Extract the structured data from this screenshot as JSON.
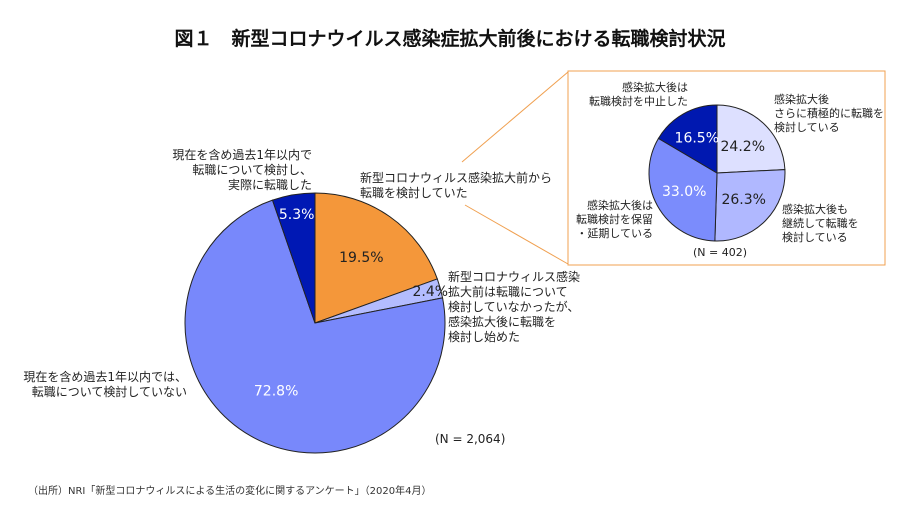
{
  "chart_data": [
    {
      "type": "pie",
      "title": "図１　新型コロナウイルス感染症拡大前後における転職検討状況",
      "n_label": "(N = 2,064)",
      "slices": [
        {
          "label": "新型コロナウィルス感染拡大前から転職を検討していた",
          "value": 19.5,
          "value_label": "19.5%",
          "color": "#f4973a"
        },
        {
          "label": "新型コロナウィルス感染拡大前は転職について検討していなかったが、感染拡大後に転職を検討し始めた",
          "value": 2.4,
          "value_label": "2.4%",
          "color": "#b3bcff"
        },
        {
          "label": "現在を含め過去1年以内では、転職について検討していない",
          "value": 72.8,
          "value_label": "72.8%",
          "color": "#7888fb"
        },
        {
          "label": "現在を含め過去1年以内で転職について検討し、実際に転職した",
          "value": 5.3,
          "value_label": "5.3%",
          "color": "#0018b4"
        }
      ]
    },
    {
      "type": "pie",
      "title": "",
      "n_label": "(N = 402)",
      "slices": [
        {
          "label": "感染拡大後さらに積極的に転職を検討している",
          "value": 24.2,
          "value_label": "24.2%",
          "color": "#dde0ff"
        },
        {
          "label": "感染拡大後も継続して転職を検討している",
          "value": 26.3,
          "value_label": "26.3%",
          "color": "#b0b8ff"
        },
        {
          "label": "感染拡大後は転職検討を保留・延期している",
          "value": 33.0,
          "value_label": "33.0%",
          "color": "#7b8cfc"
        },
        {
          "label": "感染拡大後は転職検討を中止した",
          "value": 16.5,
          "value_label": "16.5%",
          "color": "#0018b0"
        }
      ]
    }
  ],
  "labels": {
    "a": [
      "現在を含め過去1年以内で",
      "転職について検討し、",
      "実際に転職した"
    ],
    "b": [
      "新型コロナウィルス感染拡大前から",
      "転職を検討していた"
    ],
    "c": [
      "新型コロナウィルス感染",
      "拡大前は転職について",
      "検討していなかったが、",
      "感染拡大後に転職を",
      "検討し始めた"
    ],
    "d": [
      "現在を含め過去1年以内では、",
      "転職について検討していない"
    ],
    "e": [
      "感染拡大後は",
      "転職検討を中止した"
    ],
    "f": [
      "感染拡大後",
      "さらに積極的に転職を",
      "検討している"
    ],
    "g": [
      "感染拡大後も",
      "継続して転職を",
      "検討している"
    ],
    "h": [
      "感染拡大後は",
      "転職検討を保留",
      "・延期している"
    ]
  },
  "source": "（出所）NRI「新型コロナウィルスによる生活の変化に関するアンケート」（2020年4月）"
}
